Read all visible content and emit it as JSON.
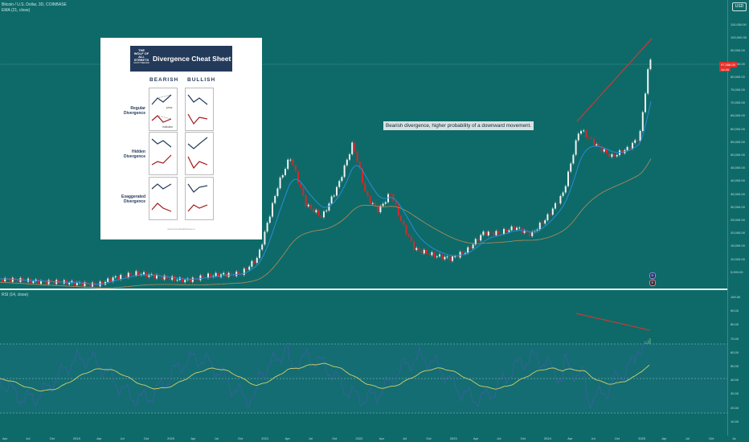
{
  "header": {
    "symbol_line": "Bitcoin / U.S. Dollar, 3D, COINBASE",
    "indicator_line": "EMA (21, close)",
    "rsi_line": "RSI (14, close)",
    "currency": "USD"
  },
  "price": {
    "badge": "97,356.00",
    "badge_sub": "1d 4h",
    "colors": {
      "up": "#f2f2f2",
      "down": "#d9262a",
      "ema_short": "#2a8bd9",
      "ema_long": "#b88b5c",
      "divergence": "#e8322c",
      "rsi": "#3f5fa8",
      "rsi_ma": "#d4cf6a"
    }
  },
  "y_ticks": [
    "110,000.00",
    "100,000.00",
    "90,000.00",
    "85,000.00",
    "80,000.00",
    "75,000.00",
    "70,000.00",
    "65,000.00",
    "60,000.00",
    "55,000.00",
    "50,000.00",
    "45,000.00",
    "40,000.00",
    "35,000.00",
    "30,000.00",
    "25,000.00",
    "20,000.00",
    "15,000.00",
    "10,000.00",
    "5,000.00"
  ],
  "rsi_ticks": [
    "100.00",
    "90.00",
    "80.00",
    "70.00",
    "60.00",
    "50.00",
    "40.00",
    "30.00",
    "20.00",
    "10.00"
  ],
  "x_ticks": [
    "Apr",
    "Jul",
    "Oct",
    "2019",
    "Apr",
    "Jul",
    "Oct",
    "2020",
    "Apr",
    "Jul",
    "Oct",
    "2021",
    "Apr",
    "Jul",
    "Oct",
    "2022",
    "Apr",
    "Jul",
    "Oct",
    "2023",
    "Apr",
    "Jul",
    "Oct",
    "2024",
    "Apr",
    "Jul",
    "Oct",
    "2025",
    "Apr",
    "Jul",
    "Oct",
    "Ja"
  ],
  "annotation": "Bearish divergence, higher probability of a downward movement.",
  "cheat_sheet": {
    "logo_text": "THE WOLF OF ALL STREETS",
    "logo_sub": "SCOTT MELKER",
    "title": "Divergence Cheat Sheet",
    "col_bearish": "BEARISH",
    "col_bullish": "BULLISH",
    "rows": [
      {
        "line1": "Regular",
        "line2": "Divergence"
      },
      {
        "line1": "Hidden",
        "line2": "Divergence"
      },
      {
        "line1": "Exaggerated",
        "line2": "Divergence"
      }
    ],
    "price_label": "price",
    "indicator_label": "indicator",
    "footer": "www.thewolfofallstreets.io"
  },
  "event_icons": [
    "D",
    "E"
  ]
}
